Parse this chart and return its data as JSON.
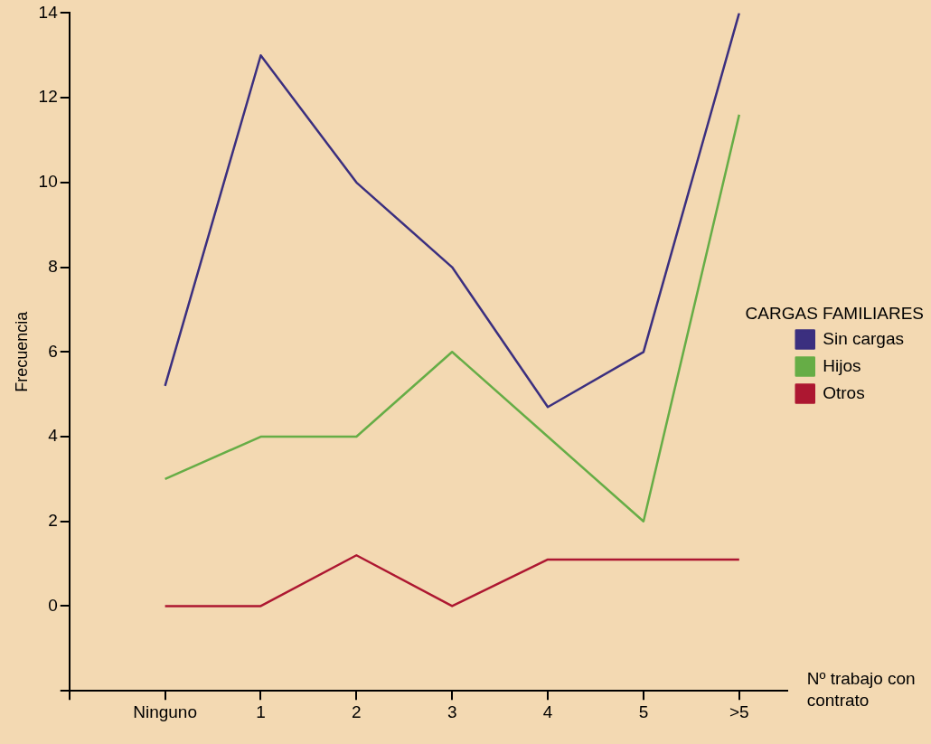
{
  "chart_data": {
    "type": "line",
    "xlabel": "Nº trabajo con contrato",
    "ylabel": "Frecuencia",
    "legend_title": "CARGAS FAMILIARES",
    "legend": "right",
    "categories": [
      "Ninguno",
      "1",
      "2",
      "3",
      "4",
      "5",
      ">5"
    ],
    "ylim": [
      -2,
      14
    ],
    "yticks": [
      {
        "value": -2,
        "label": null
      },
      0,
      2,
      4,
      6,
      8,
      10,
      12,
      14
    ],
    "series": [
      {
        "name": "Sin cargas",
        "color": "#3b2f7f",
        "values": [
          5.2,
          13,
          10,
          8,
          4.7,
          6,
          14
        ]
      },
      {
        "name": "Hijos",
        "color": "#66ad46",
        "values": [
          3,
          4,
          4,
          6,
          4,
          2,
          11.6
        ]
      },
      {
        "name": "Otros",
        "color": "#ad1731",
        "values": [
          0,
          0,
          1.2,
          0,
          1.1,
          1.1,
          1.1
        ]
      }
    ]
  }
}
